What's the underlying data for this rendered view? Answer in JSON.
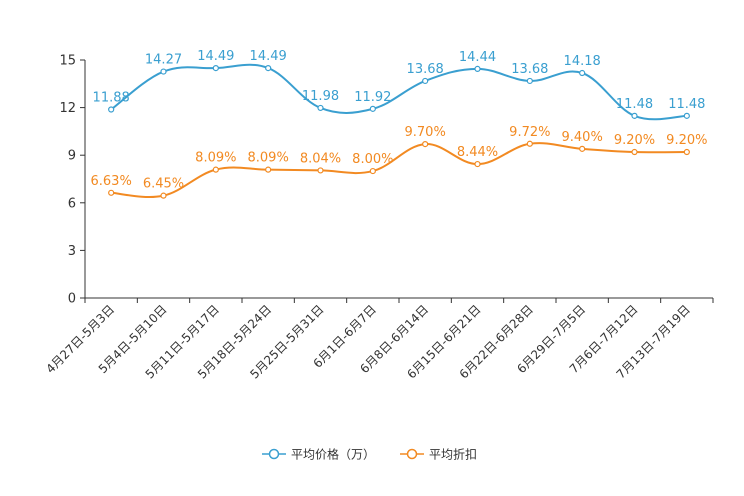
{
  "chart_data": {
    "type": "line",
    "categories": [
      "4月27日-5月3日",
      "5月4日-5月10日",
      "5月11日-5月17日",
      "5月18日-5月24日",
      "5月25日-5月31日",
      "6月1日-6月7日",
      "6月8日-6月14日",
      "6月15日-6月21日",
      "6月22日-6月28日",
      "6月29日-7月5日",
      "7月6日-7月12日",
      "7月13日-7月19日"
    ],
    "ylim": [
      0,
      15
    ],
    "yticks": [
      "0",
      "3",
      "6",
      "9",
      "12",
      "15"
    ],
    "series": [
      {
        "name": "平均价格（万）",
        "color": "#3a9fd0",
        "values": [
          11.88,
          14.27,
          14.49,
          14.49,
          11.98,
          11.92,
          13.68,
          14.44,
          13.68,
          14.18,
          11.48,
          11.48
        ],
        "labels": [
          "11.88",
          "14.27",
          "14.49",
          "14.49",
          "11.98",
          "11.92",
          "13.68",
          "14.44",
          "13.68",
          "14.18",
          "11.48",
          "11.48"
        ]
      },
      {
        "name": "平均折扣",
        "color": "#f28a22",
        "values": [
          6.63,
          6.45,
          8.09,
          8.09,
          8.04,
          8.0,
          9.7,
          8.44,
          9.72,
          9.4,
          9.2,
          9.2
        ],
        "labels": [
          "6.63%",
          "6.45%",
          "8.09%",
          "8.09%",
          "8.04%",
          "8.00%",
          "9.70%",
          "8.44%",
          "9.72%",
          "9.40%",
          "9.20%",
          "9.20%"
        ]
      }
    ],
    "legend_position": "bottom-center"
  }
}
